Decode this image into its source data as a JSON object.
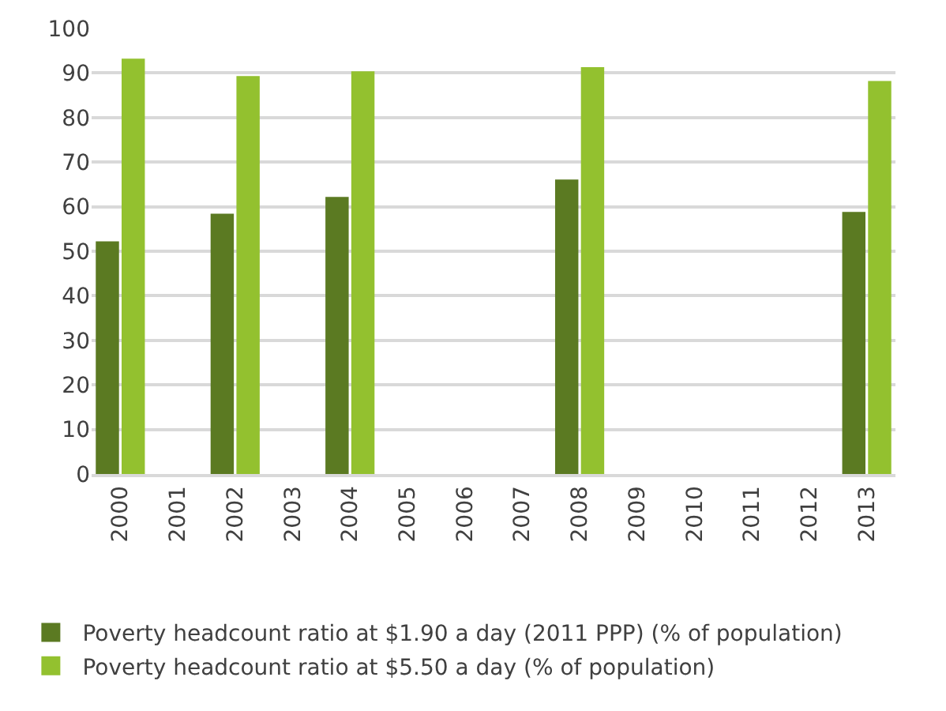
{
  "chart_data": {
    "type": "bar",
    "categories": [
      "2000",
      "2001",
      "2002",
      "2003",
      "2004",
      "2005",
      "2006",
      "2007",
      "2008",
      "2009",
      "2010",
      "2011",
      "2012",
      "2013"
    ],
    "series": [
      {
        "name": "Poverty headcount ratio at $1.90 a day (2011 PPP) (% of population)",
        "color": "#5b7a22",
        "values": [
          52.2,
          null,
          58.4,
          null,
          62.2,
          null,
          null,
          null,
          66.1,
          null,
          null,
          null,
          null,
          58.8
        ]
      },
      {
        "name": "Poverty headcount ratio at $5.50 a day (% of population)",
        "color": "#93c12f",
        "values": [
          93.2,
          null,
          89.3,
          null,
          90.4,
          null,
          null,
          null,
          91.3,
          null,
          null,
          null,
          null,
          88.2
        ]
      }
    ],
    "ylim": [
      0,
      100
    ],
    "yticks": [
      0,
      10,
      20,
      30,
      40,
      50,
      60,
      70,
      80,
      90,
      100
    ],
    "grid": "y",
    "legend": "bottom"
  }
}
